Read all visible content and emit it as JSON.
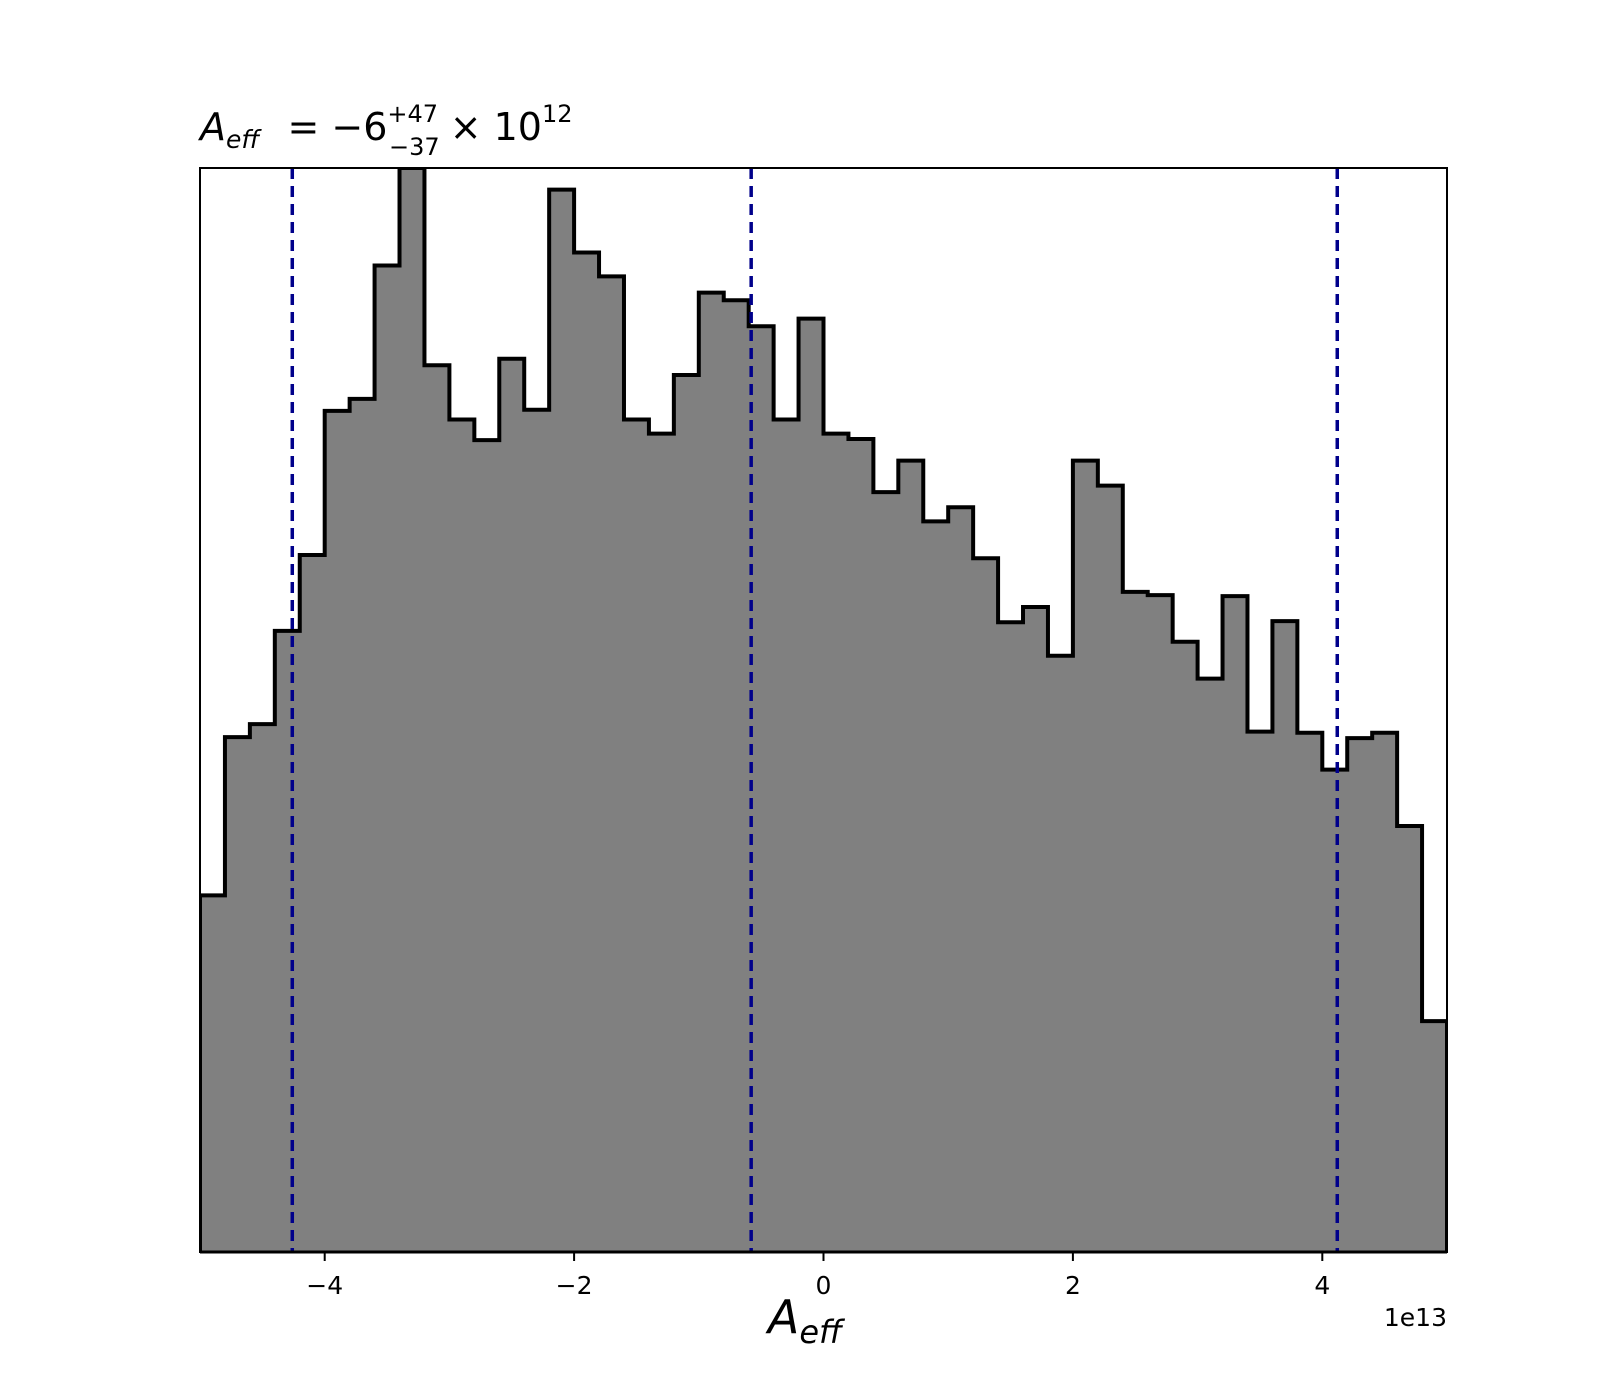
{
  "chart_data": {
    "type": "histogram",
    "title": {
      "symbol": "A",
      "symbol_sub": "eff",
      "eq": "= −6",
      "sup": "+47",
      "sub": "−37",
      "times": "× 10",
      "exp": "12"
    },
    "xlabel": {
      "symbol": "A",
      "sub": "eff"
    },
    "ylabel": "",
    "x_offset_label": "1e13",
    "xlim": [
      -5.0,
      5.0
    ],
    "ylim": [
      0,
      1.0
    ],
    "xticks": [
      {
        "value": -4,
        "label": "−4"
      },
      {
        "value": -2,
        "label": "−2"
      },
      {
        "value": 0,
        "label": "0"
      },
      {
        "value": 2,
        "label": "2"
      },
      {
        "value": 4,
        "label": "4"
      }
    ],
    "yticks_visible": false,
    "bin_edges": [
      -5.0,
      -4.8,
      -4.6,
      -4.4,
      -4.2,
      -4.0,
      -3.8,
      -3.6,
      -3.4,
      -3.2,
      -3.0,
      -2.8,
      -2.6,
      -2.4,
      -2.2,
      -2.0,
      -1.8,
      -1.6,
      -1.4,
      -1.2,
      -1.0,
      -0.8,
      -0.6,
      -0.4,
      -0.2,
      0.0,
      0.2,
      0.4,
      0.6,
      0.8,
      1.0,
      1.2,
      1.4,
      1.6,
      1.8,
      2.0,
      2.2,
      2.4,
      2.6,
      2.8,
      3.0,
      3.2,
      3.4,
      3.6,
      3.8,
      4.0,
      4.2,
      4.4,
      4.6,
      4.8,
      5.0
    ],
    "counts": [
      0.329,
      0.475,
      0.487,
      0.573,
      0.643,
      0.776,
      0.787,
      0.91,
      1.0,
      0.818,
      0.768,
      0.749,
      0.824,
      0.777,
      0.98,
      0.922,
      0.9,
      0.768,
      0.755,
      0.809,
      0.885,
      0.878,
      0.854,
      0.768,
      0.861,
      0.755,
      0.75,
      0.701,
      0.73,
      0.674,
      0.687,
      0.64,
      0.581,
      0.595,
      0.55,
      0.73,
      0.707,
      0.609,
      0.606,
      0.563,
      0.529,
      0.605,
      0.48,
      0.582,
      0.479,
      0.445,
      0.474,
      0.479,
      0.393,
      0.213
    ],
    "vlines": [
      -4.26,
      -0.58,
      4.12
    ],
    "colors": {
      "fill": "#808080",
      "edge": "#000000",
      "vline": "#00008b",
      "axes": "#000000"
    }
  }
}
